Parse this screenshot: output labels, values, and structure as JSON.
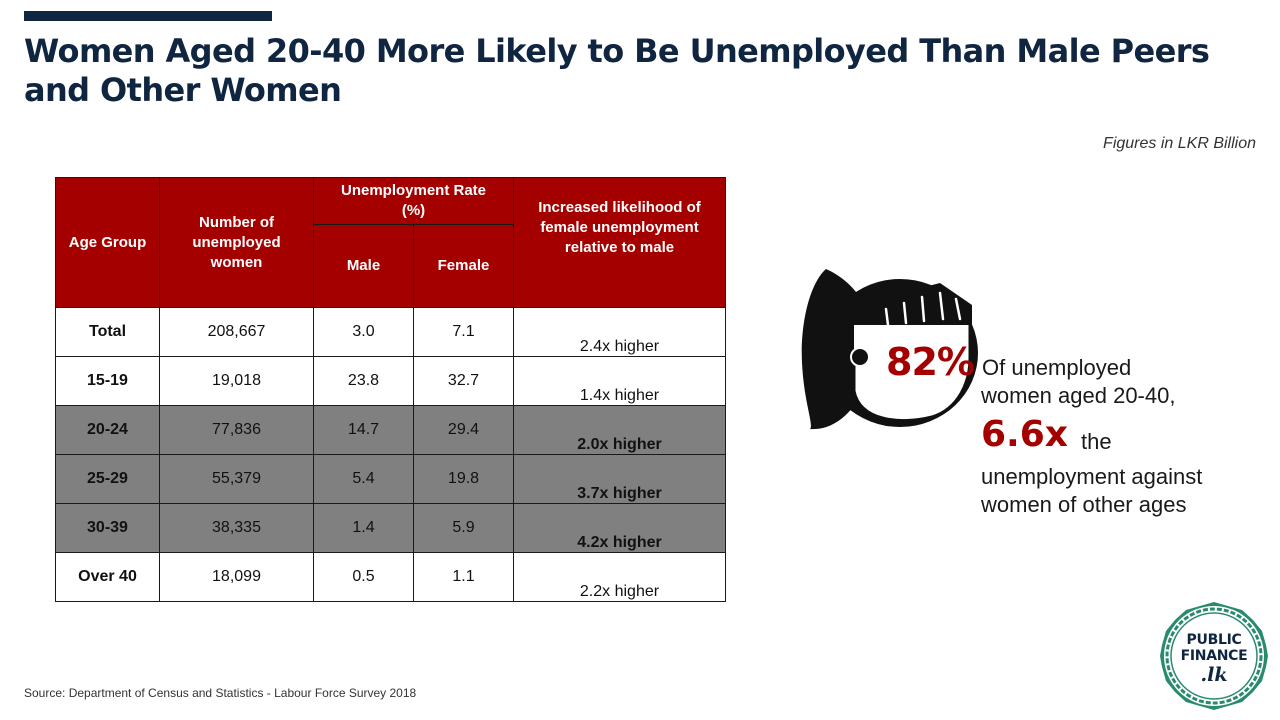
{
  "title": "Women Aged 20-40 More Likely to Be Unemployed Than Male Peers and Other Women",
  "units_note": "Figures in LKR Billion",
  "table": {
    "headers": {
      "age_group": "Age Group",
      "number": "Number of unemployed women",
      "rate": "Unemployment Rate (%)",
      "male": "Male",
      "female": "Female",
      "likelihood": "Increased likelihood of female unemployment relative to male"
    },
    "rows": [
      {
        "group": "Total",
        "number": "208,667",
        "male": "3.0",
        "female": "7.1",
        "likelihood": "2.4x higher"
      },
      {
        "group": "15-19",
        "number": "19,018",
        "male": "23.8",
        "female": "32.7",
        "likelihood": "1.4x higher"
      },
      {
        "group": "20-24",
        "number": "77,836",
        "male": "14.7",
        "female": "29.4",
        "likelihood": "2.0x higher"
      },
      {
        "group": "25-29",
        "number": "55,379",
        "male": "5.4",
        "female": "19.8",
        "likelihood": "3.7x higher"
      },
      {
        "group": "30-39",
        "number": "38,335",
        "male": "1.4",
        "female": "5.9",
        "likelihood": "4.2x higher"
      },
      {
        "group": "Over 40",
        "number": "18,099",
        "male": "0.5",
        "female": "1.1",
        "likelihood": "2.2x higher"
      }
    ]
  },
  "callout": {
    "percent": "82%",
    "line1": "Of unemployed",
    "line2": "women aged 20-40,",
    "multiplier": "6.6x",
    "line3": "the",
    "line4": "unemployment against",
    "line5": "women of other ages"
  },
  "source": "Source: Department of Census and Statistics - Labour Force Survey 2018",
  "logo": {
    "line1": "PUBLIC",
    "line2": "FINANCE",
    "line3": ".lk"
  },
  "colors": {
    "navy": "#0f2540",
    "red": "#a50000",
    "grey": "#808080",
    "green": "#2a8a6e"
  },
  "icons": [
    "woman-icon",
    "logo-seal-icon"
  ]
}
